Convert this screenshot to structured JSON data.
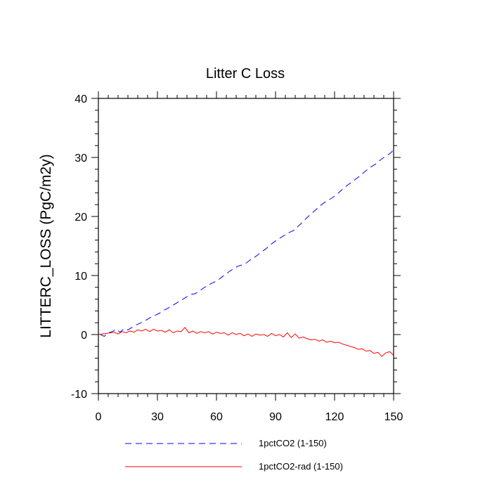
{
  "chart_data": {
    "type": "line",
    "title": "Litter C Loss",
    "xlabel": "",
    "ylabel": "LITTERC_LOSS  (PgC/m2y)",
    "xlim": [
      0,
      150
    ],
    "ylim": [
      -10,
      40
    ],
    "xticks": [
      0,
      30,
      60,
      90,
      120,
      150
    ],
    "yticks": [
      -10,
      0,
      10,
      20,
      30,
      40
    ],
    "grid": false,
    "legend_position": "bottom",
    "series": [
      {
        "name": "1pctCO2 (1-150)",
        "color": "#0000ff",
        "dash": "dashed",
        "x": [
          1,
          3,
          5,
          7,
          9,
          11,
          13,
          15,
          17,
          19,
          21,
          23,
          25,
          27,
          29,
          31,
          33,
          35,
          37,
          39,
          41,
          43,
          45,
          47,
          49,
          51,
          53,
          55,
          57,
          59,
          61,
          63,
          65,
          67,
          69,
          71,
          73,
          75,
          77,
          79,
          81,
          83,
          85,
          87,
          89,
          91,
          93,
          95,
          97,
          99,
          101,
          103,
          105,
          107,
          109,
          111,
          113,
          115,
          117,
          119,
          121,
          123,
          125,
          127,
          129,
          131,
          133,
          135,
          137,
          139,
          141,
          143,
          145,
          147,
          149,
          150
        ],
        "y": [
          0.0,
          -0.3,
          0.3,
          0.5,
          0.9,
          0.4,
          1.0,
          0.8,
          1.2,
          1.6,
          1.9,
          2.2,
          2.6,
          3.0,
          3.3,
          3.6,
          4.1,
          4.4,
          4.8,
          5.2,
          5.6,
          6.0,
          6.4,
          6.8,
          6.9,
          7.3,
          7.8,
          8.2,
          8.6,
          8.9,
          9.3,
          9.8,
          10.3,
          10.8,
          11.2,
          11.6,
          11.8,
          12.1,
          12.6,
          13.0,
          13.5,
          14.0,
          14.5,
          15.1,
          15.6,
          16.1,
          16.5,
          16.9,
          17.3,
          17.6,
          18.2,
          18.8,
          19.5,
          20.1,
          20.7,
          21.3,
          21.9,
          22.4,
          22.8,
          23.2,
          23.7,
          24.3,
          24.9,
          25.4,
          25.9,
          26.4,
          26.9,
          27.5,
          28.0,
          28.5,
          28.9,
          29.5,
          30.0,
          30.4,
          30.9,
          31.5
        ]
      },
      {
        "name": "1pctCO2-rad (1-150)",
        "color": "#ff0000",
        "dash": "solid",
        "x": [
          0,
          2,
          4,
          6,
          8,
          10,
          12,
          14,
          16,
          18,
          20,
          22,
          24,
          26,
          28,
          30,
          32,
          34,
          36,
          38,
          40,
          42,
          44,
          46,
          48,
          50,
          52,
          54,
          56,
          58,
          60,
          62,
          64,
          66,
          68,
          70,
          72,
          74,
          76,
          78,
          80,
          82,
          84,
          86,
          88,
          90,
          92,
          94,
          96,
          98,
          100,
          102,
          104,
          106,
          108,
          110,
          112,
          114,
          116,
          118,
          120,
          122,
          124,
          126,
          128,
          130,
          132,
          134,
          136,
          138,
          140,
          142,
          144,
          146,
          148,
          150
        ],
        "y": [
          0.0,
          0.1,
          0.2,
          0.3,
          0.4,
          0.1,
          0.5,
          0.3,
          0.6,
          0.4,
          0.8,
          0.6,
          0.9,
          0.5,
          0.9,
          0.6,
          0.7,
          0.4,
          0.8,
          0.3,
          0.6,
          0.5,
          1.2,
          0.3,
          0.6,
          0.2,
          0.5,
          0.3,
          0.5,
          0.1,
          0.4,
          0.2,
          0.3,
          -0.1,
          0.3,
          0.0,
          0.2,
          -0.2,
          0.1,
          -0.3,
          0.1,
          -0.1,
          0.0,
          -0.3,
          0.2,
          -0.2,
          0.0,
          -0.4,
          0.3,
          -0.5,
          0.1,
          -0.6,
          -0.4,
          -0.7,
          -0.9,
          -0.8,
          -1.1,
          -0.9,
          -1.3,
          -1.1,
          -1.4,
          -1.3,
          -1.6,
          -1.8,
          -2.0,
          -2.2,
          -2.5,
          -2.4,
          -2.8,
          -2.7,
          -3.2,
          -3.0,
          -3.7,
          -3.1,
          -2.9,
          -3.5
        ]
      }
    ]
  }
}
